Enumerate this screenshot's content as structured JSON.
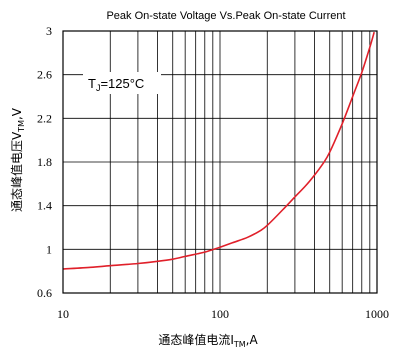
{
  "chart_data": {
    "type": "line",
    "title": "Peak On-state Voltage Vs.Peak On-state Current",
    "xlabel": {
      "main": "通态峰值电流I",
      "sub": "TM",
      "suffix": ",A"
    },
    "ylabel": {
      "main": "通态峰值电压V",
      "sub": "TM",
      "suffix": ",V"
    },
    "xscale": "log",
    "xlim": [
      10,
      1000
    ],
    "ylim": [
      0.6,
      3.0
    ],
    "x_ticks": [
      10,
      100,
      1000
    ],
    "x_tick_labels": [
      "10",
      "100",
      "1000"
    ],
    "y_ticks": [
      0.6,
      1.0,
      1.4,
      1.8,
      2.2,
      2.6,
      3.0
    ],
    "y_tick_labels": [
      "0.6",
      "1",
      "1.4",
      "1.8",
      "2.2",
      "2.6",
      "3"
    ],
    "grid": true,
    "annotation": {
      "main": "T",
      "sub": "J",
      "suffix": "=125°C"
    },
    "series_color": "#e0202a",
    "series": [
      {
        "x": [
          10,
          15,
          20,
          30,
          40,
          50,
          60,
          80,
          100,
          120,
          150,
          180,
          200,
          250,
          300,
          350,
          400,
          450,
          500,
          600,
          700,
          800,
          900,
          960
        ],
        "y": [
          0.82,
          0.835,
          0.85,
          0.87,
          0.89,
          0.91,
          0.935,
          0.975,
          1.02,
          1.06,
          1.11,
          1.17,
          1.22,
          1.36,
          1.48,
          1.58,
          1.68,
          1.78,
          1.89,
          2.15,
          2.4,
          2.62,
          2.85,
          2.99
        ]
      }
    ]
  }
}
